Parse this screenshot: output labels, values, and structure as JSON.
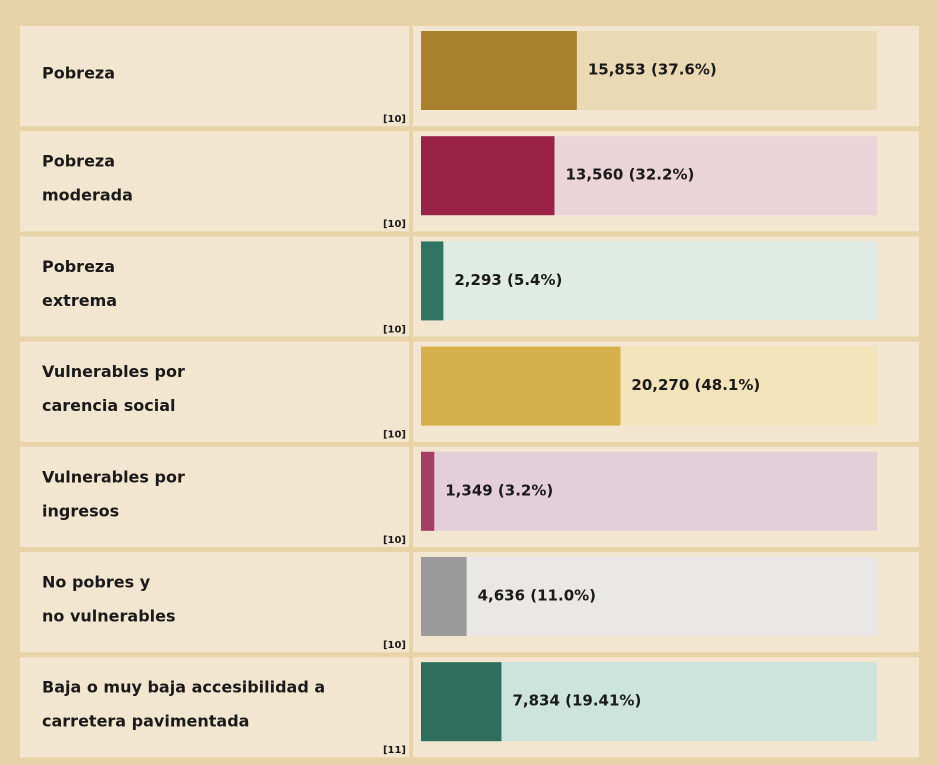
{
  "chart_data": {
    "type": "hbar",
    "categories": [
      [
        "Pobreza"
      ],
      [
        "Pobreza",
        "moderada"
      ],
      [
        "Pobreza",
        "extrema"
      ],
      [
        "Vulnerables por",
        "carencia social"
      ],
      [
        "Vulnerables por",
        "ingresos"
      ],
      [
        "No pobres y",
        "no vulnerables"
      ],
      [
        "Baja o muy baja accesibilidad a",
        "carretera pavimentada"
      ]
    ],
    "notes": [
      "[10]",
      "[10]",
      "[10]",
      "[10]",
      "[10]",
      "[10]",
      "[11]"
    ],
    "values": [
      37.6,
      32.2,
      5.4,
      48.1,
      3.2,
      11.0,
      19.41
    ],
    "value_labels": [
      "15,853 (37.6%)",
      "13,560 (32.2%)",
      "2,293 (5.4%)",
      "20,270 (48.1%)",
      "1,349 (3.2%)",
      "4,636 (11.0%)",
      "7,834 (19.41%)"
    ],
    "colors": [
      "#a8812f",
      "#9b2247",
      "#317463",
      "#d6b04a",
      "#a53e65",
      "#9c9b9b",
      "#2f6e5c"
    ],
    "track_colors": [
      "#ead9b4",
      "#ebd3da",
      "#e1ebe6",
      "#f3e3bb",
      "#e4cfd9",
      "#e9e8e6",
      "#cde4dc"
    ],
    "xlim": [
      0,
      110
    ]
  }
}
